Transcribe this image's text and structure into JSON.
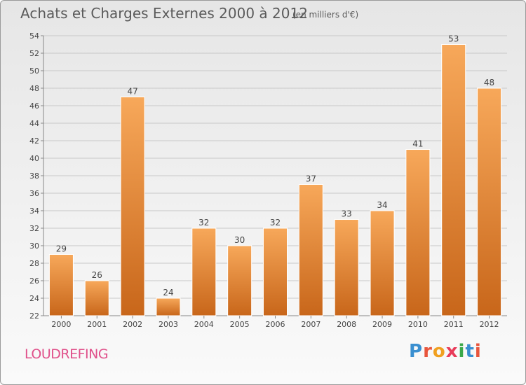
{
  "header": {
    "title": "Achats et Charges Externes 2000 à 2012",
    "subtitle": "(en milliers d'€)"
  },
  "footer": {
    "place": "LOUDREFING",
    "brand_letters": [
      "P",
      "r",
      "o",
      "x",
      "i",
      "t",
      "i"
    ],
    "brand_colors": [
      "#3a8fd0",
      "#e8553c",
      "#f0a020",
      "#e83c5a",
      "#3aa84a",
      "#3a8fd0",
      "#e8553c"
    ]
  },
  "chart_data": {
    "type": "bar",
    "title": "Achats et Charges Externes 2000 à 2012",
    "subtitle": "(en milliers d'€)",
    "categories": [
      "2000",
      "2001",
      "2002",
      "2003",
      "2004",
      "2005",
      "2006",
      "2007",
      "2008",
      "2009",
      "2010",
      "2011",
      "2012"
    ],
    "values": [
      29,
      26,
      47,
      24,
      32,
      30,
      32,
      37,
      33,
      34,
      41,
      53,
      48
    ],
    "ylim": [
      22,
      54
    ],
    "yticks": [
      22,
      24,
      26,
      28,
      30,
      32,
      34,
      36,
      38,
      40,
      42,
      44,
      46,
      48,
      50,
      52,
      54
    ],
    "grid": true,
    "bar_color_top": "#f7a85a",
    "bar_color_bottom": "#c8661a"
  }
}
